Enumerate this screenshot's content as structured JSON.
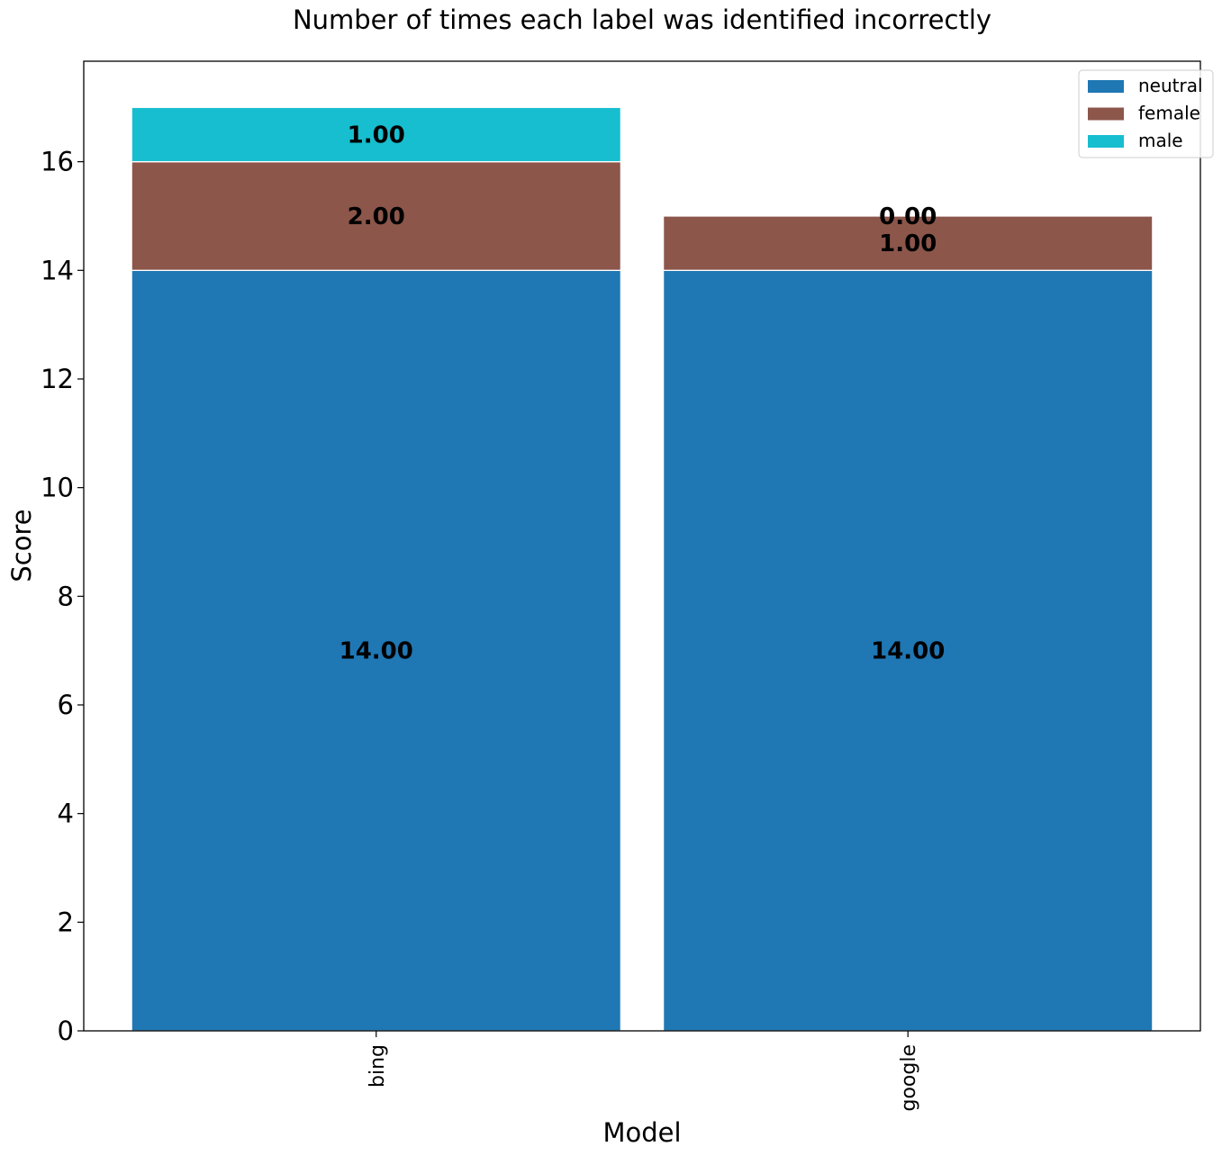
{
  "chart_data": {
    "type": "bar",
    "stacked": true,
    "title": "Number of times each label was identified incorrectly",
    "xlabel": "Model",
    "ylabel": "Score",
    "categories": [
      "bing",
      "google"
    ],
    "series": [
      {
        "name": "neutral",
        "values": [
          14,
          14
        ],
        "color": "#1f77b4"
      },
      {
        "name": "female",
        "values": [
          2,
          1
        ],
        "color": "#8c564b"
      },
      {
        "name": "male",
        "values": [
          1,
          0
        ],
        "color": "#17becf"
      }
    ],
    "data_labels": [
      [
        "14.00",
        "14.00"
      ],
      [
        "2.00",
        "1.00"
      ],
      [
        "1.00",
        "0.00"
      ]
    ],
    "yticks": [
      "0",
      "2",
      "4",
      "6",
      "8",
      "10",
      "12",
      "14",
      "16"
    ],
    "ylim": [
      0,
      17.85
    ],
    "grid": false,
    "legend_position": "top-right"
  }
}
